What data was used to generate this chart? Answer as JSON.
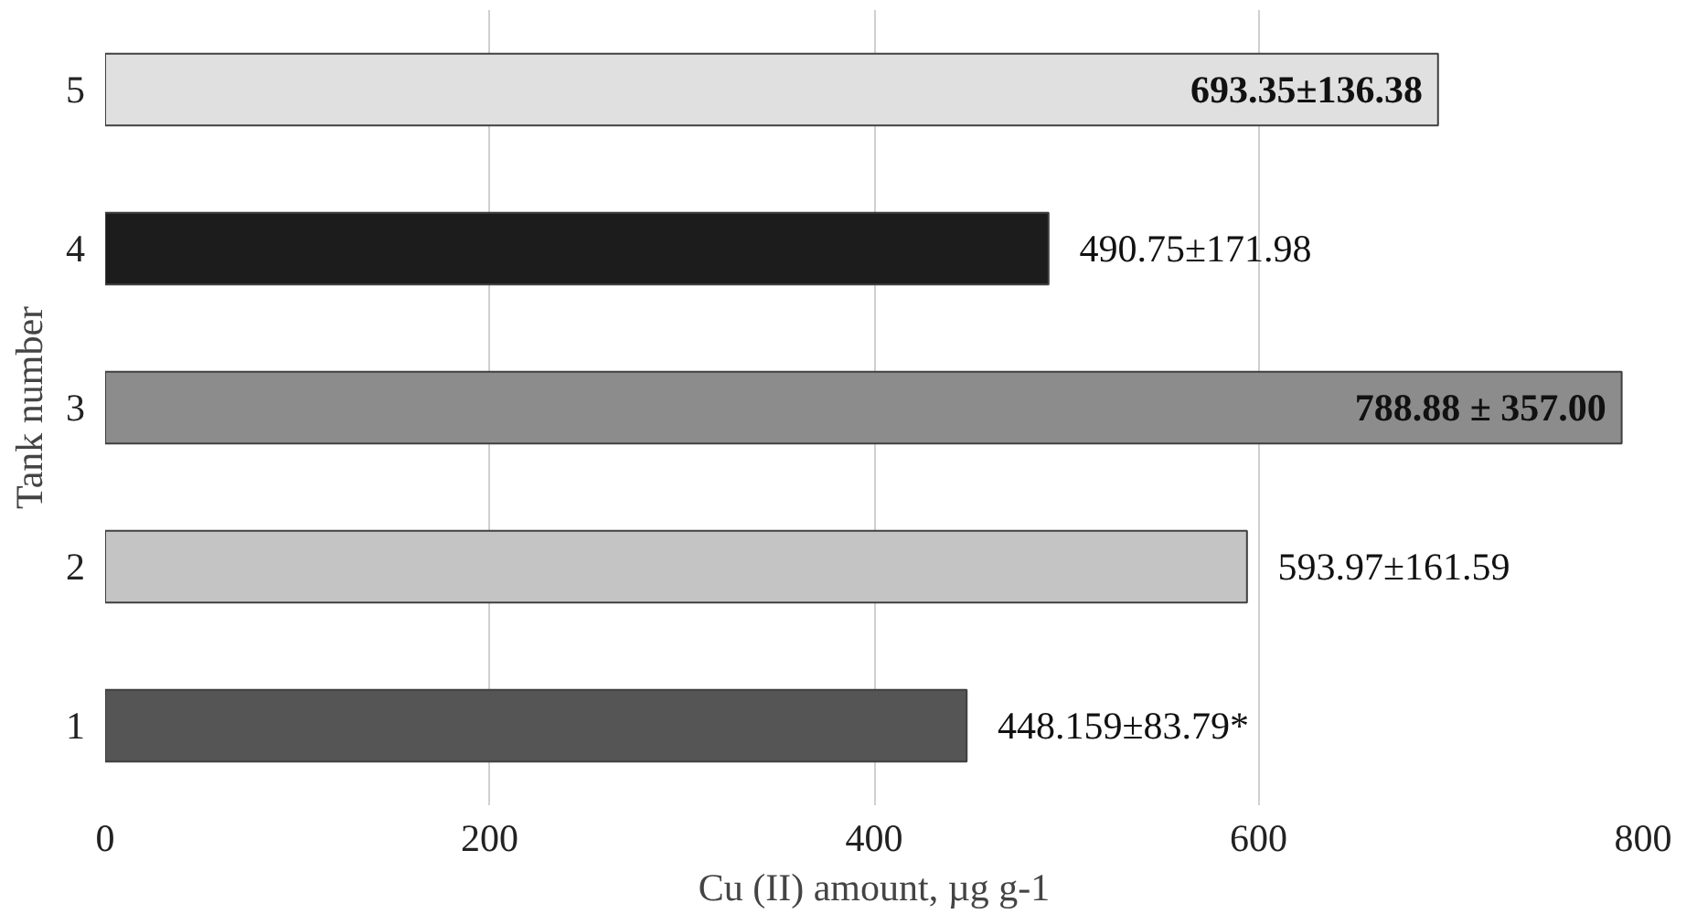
{
  "chart_data": {
    "type": "bar",
    "orientation": "horizontal",
    "xlabel": "Cu (II) amount, µg g-1",
    "ylabel": "Tank number",
    "categories": [
      "5",
      "4",
      "3",
      "2",
      "1"
    ],
    "values": [
      693.35,
      490.75,
      788.88,
      593.97,
      448.159
    ],
    "colors": [
      "#e0e0e0",
      "#1c1c1c",
      "#8c8c8c",
      "#c4c4c4",
      "#555555"
    ],
    "value_labels": [
      "693.35±136.38",
      "490.75±171.98",
      "788.88 ± 357.00",
      "593.97±161.59",
      "448.159±83.79*"
    ],
    "xlim": [
      0,
      800
    ],
    "xticks": [
      0,
      200,
      400,
      600,
      800
    ],
    "grid": "x"
  }
}
